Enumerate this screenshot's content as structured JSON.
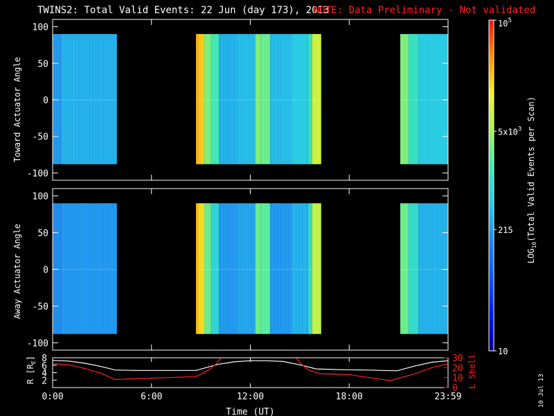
{
  "header": {
    "title": "TWINS2: Total Valid Events: 22 Jun (day 173), 2013",
    "note": "NOTE: Data Preliminary - Not validated"
  },
  "side_date": "10 Jul 13",
  "colors": {
    "note": "#ff2020",
    "lshell": "#ff2020",
    "radius": "#ffffff",
    "frame": "#ffffff",
    "colormap": [
      "#000090",
      "#0018ff",
      "#0a58ff",
      "#1f86f0",
      "#28c8e6",
      "#3fe9b4",
      "#a6f05a",
      "#f7f12a",
      "#ff9000",
      "#ff1010"
    ]
  },
  "chart_data": [
    {
      "type": "heatmap",
      "panel": "top",
      "ylabel": "Toward Actuator Angle",
      "yticks": [
        100,
        50,
        0,
        -50,
        -100
      ],
      "ylim": [
        -110,
        110
      ],
      "xlim_hours": [
        0,
        24
      ],
      "data_y_range": [
        -88,
        90
      ],
      "coverage_hours": [
        [
          0.0,
          3.9
        ],
        [
          8.7,
          16.3
        ],
        [
          21.1,
          24.0
        ]
      ],
      "bands": [
        {
          "x": [
            0.0,
            0.5
          ],
          "level": 0.36
        },
        {
          "x": [
            0.5,
            3.9
          ],
          "level": 0.4
        },
        {
          "x": [
            8.7,
            8.85
          ],
          "level": 0.85
        },
        {
          "x": [
            8.85,
            9.2
          ],
          "level": 0.82
        },
        {
          "x": [
            9.2,
            9.6
          ],
          "level": 0.62
        },
        {
          "x": [
            9.6,
            10.1
          ],
          "level": 0.55
        },
        {
          "x": [
            10.1,
            11.2
          ],
          "level": 0.4
        },
        {
          "x": [
            11.2,
            12.3
          ],
          "level": 0.42
        },
        {
          "x": [
            12.3,
            12.65
          ],
          "level": 0.62
        },
        {
          "x": [
            12.65,
            13.2
          ],
          "level": 0.6
        },
        {
          "x": [
            13.2,
            14.5
          ],
          "level": 0.42
        },
        {
          "x": [
            14.5,
            15.5
          ],
          "level": 0.45
        },
        {
          "x": [
            15.5,
            15.75
          ],
          "level": 0.52
        },
        {
          "x": [
            15.75,
            16.3
          ],
          "level": 0.72
        },
        {
          "x": [
            21.1,
            21.6
          ],
          "level": 0.62
        },
        {
          "x": [
            21.6,
            22.2
          ],
          "level": 0.52
        },
        {
          "x": [
            22.2,
            24.0
          ],
          "level": 0.45
        }
      ]
    },
    {
      "type": "heatmap",
      "panel": "bottom",
      "ylabel": "Away Actuator Angle",
      "yticks": [
        100,
        50,
        0,
        -50,
        -100
      ],
      "ylim": [
        -110,
        110
      ],
      "xlim_hours": [
        0,
        24
      ],
      "data_y_range": [
        -88,
        90
      ],
      "coverage_hours": [
        [
          0.0,
          3.9
        ],
        [
          8.7,
          16.3
        ],
        [
          21.1,
          24.0
        ]
      ],
      "bands": [
        {
          "x": [
            0.0,
            0.5
          ],
          "level": 0.34
        },
        {
          "x": [
            0.5,
            3.9
          ],
          "level": 0.36
        },
        {
          "x": [
            8.7,
            8.85
          ],
          "level": 0.84
        },
        {
          "x": [
            8.85,
            9.2
          ],
          "level": 0.8
        },
        {
          "x": [
            9.2,
            9.6
          ],
          "level": 0.6
        },
        {
          "x": [
            9.6,
            10.1
          ],
          "level": 0.48
        },
        {
          "x": [
            10.1,
            11.2
          ],
          "level": 0.36
        },
        {
          "x": [
            11.2,
            12.3
          ],
          "level": 0.38
        },
        {
          "x": [
            12.3,
            12.65
          ],
          "level": 0.6
        },
        {
          "x": [
            12.65,
            13.2
          ],
          "level": 0.58
        },
        {
          "x": [
            13.2,
            14.5
          ],
          "level": 0.36
        },
        {
          "x": [
            14.5,
            15.5
          ],
          "level": 0.4
        },
        {
          "x": [
            15.5,
            15.75
          ],
          "level": 0.5
        },
        {
          "x": [
            15.75,
            16.3
          ],
          "level": 0.7
        },
        {
          "x": [
            21.1,
            21.6
          ],
          "level": 0.6
        },
        {
          "x": [
            21.6,
            22.2
          ],
          "level": 0.5
        },
        {
          "x": [
            22.2,
            24.0
          ],
          "level": 0.4
        }
      ]
    },
    {
      "type": "line",
      "panel": "ephemeris",
      "xlabel": "Time (UT)",
      "xticks": [
        "0:00",
        "6:00",
        "12:00",
        "18:00",
        "23:59"
      ],
      "xtick_hours": [
        0,
        6,
        12,
        18,
        24
      ],
      "ylabel_left": "R [R",
      "ylabel_left_sub": "E",
      "ylabel_left_close": "]",
      "yticks_left": [
        2,
        4,
        6,
        8
      ],
      "ylim_left": [
        0,
        8
      ],
      "ylabel_right": "L Shell",
      "yticks_right": [
        0,
        10,
        20,
        30
      ],
      "ylim_right": [
        0,
        30
      ],
      "series": [
        {
          "axis": "left",
          "x": [
            0,
            1,
            2,
            3,
            3.8,
            5,
            7,
            8.7,
            10,
            11,
            12,
            13,
            14,
            15,
            16,
            17.5,
            19,
            20,
            20.9,
            22,
            23,
            24
          ],
          "y": [
            7.3,
            7.1,
            6.5,
            5.6,
            4.7,
            4.6,
            4.6,
            4.6,
            6.2,
            6.9,
            7.2,
            7.2,
            7.0,
            6.1,
            5.0,
            4.8,
            4.7,
            4.6,
            4.5,
            5.8,
            6.8,
            7.2
          ]
        },
        {
          "axis": "right",
          "x": [
            0,
            1,
            2,
            3,
            3.8,
            5,
            7,
            8.7,
            9.5,
            10,
            10.3,
            14.7,
            15,
            15.5,
            16.2,
            18,
            20.5,
            22,
            23,
            24
          ],
          "y": [
            24,
            23,
            19,
            14,
            8,
            9,
            10,
            11,
            18,
            25,
            32,
            32,
            25,
            18,
            14,
            13,
            7,
            14,
            20,
            24
          ]
        }
      ]
    },
    {
      "type": "heatmap",
      "panel": "colorbar",
      "ylabel": "LOG",
      "ylabel_sub": "10",
      "ylabel_rest": "(Total Valid Events per Scan)",
      "tick_labels": [
        {
          "main": "10",
          "sup": "5",
          "level": 1.0
        },
        {
          "main": "5x10",
          "sup": "3",
          "level": 0.664
        },
        {
          "main": "215",
          "sup": "",
          "level": 0.367
        },
        {
          "main": "10",
          "sup": "",
          "level": 0.0
        }
      ]
    }
  ]
}
